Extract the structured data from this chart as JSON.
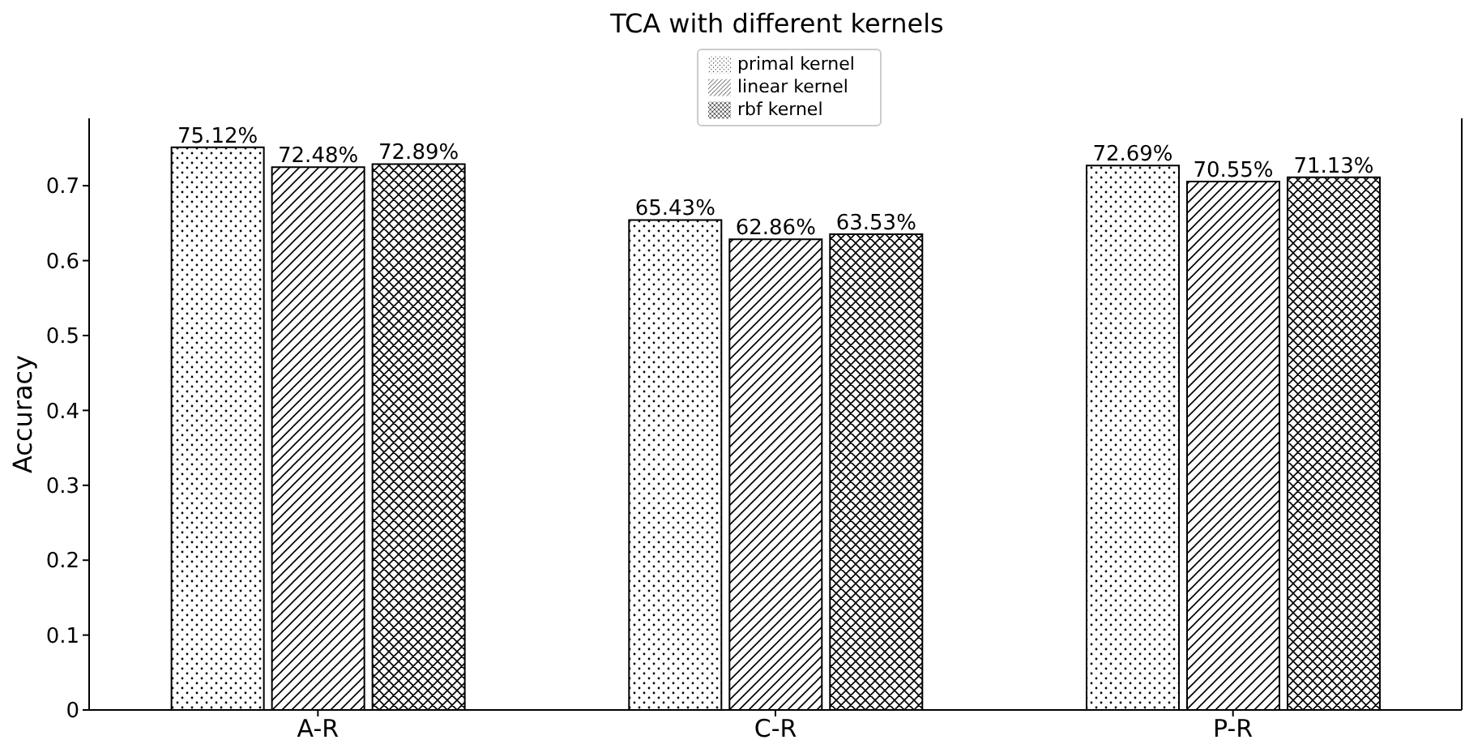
{
  "chart_data": {
    "type": "bar",
    "title": "TCA with different kernels",
    "ylabel": "Accuracy",
    "categories": [
      "A-R",
      "C-R",
      "P-R"
    ],
    "series": [
      {
        "name": "primal kernel",
        "color": "#000000",
        "values": [
          0.7512,
          0.6543,
          0.7269
        ],
        "value_labels": [
          "75.12%",
          "65.43%",
          "72.69%"
        ]
      },
      {
        "name": "linear kernel",
        "color": "#000000",
        "values": [
          0.7248,
          0.6286,
          0.7055
        ],
        "value_labels": [
          "72.48%",
          "62.86%",
          "70.55%"
        ]
      },
      {
        "name": "rbf kernel",
        "color": "#000000",
        "values": [
          0.7289,
          0.6353,
          0.7113
        ],
        "value_labels": [
          "72.89%",
          "63.53%",
          "71.13%"
        ]
      }
    ],
    "ylim": [
      0,
      0.79
    ],
    "yticks": [
      0,
      0.1,
      0.2,
      0.3,
      0.4,
      0.5,
      0.6,
      0.7
    ],
    "grid": false,
    "legend": "top"
  }
}
